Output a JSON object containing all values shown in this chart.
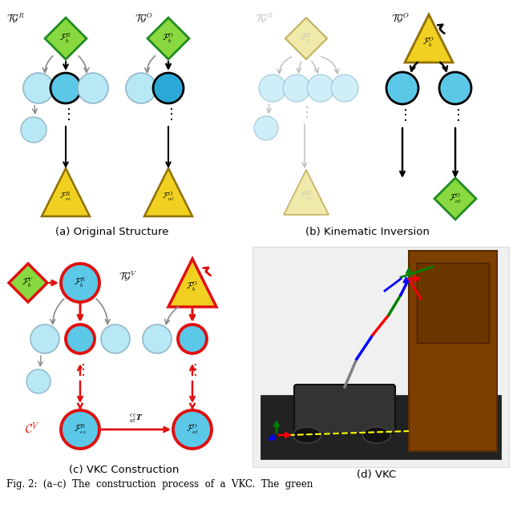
{
  "fig_width": 6.4,
  "fig_height": 6.44,
  "bg_color": "#ffffff",
  "caption": "Fig. 2:  (a–c)  The  construction  process  of  a  VKC.  The  green",
  "subcaption_a": "(a) Original Structure",
  "subcaption_b": "(b) Kinematic Inversion",
  "subcaption_c": "(c) VKC Construction",
  "subcaption_d": "(d) VKC",
  "light_blue_fill": "#b8e8f5",
  "med_blue_fill": "#5bc8e8",
  "dark_blue_fill": "#2aa8d8",
  "light_blue_stroke": "#90b8c8",
  "green_diamond_fill": "#88d840",
  "green_diamond_stroke": "#228B22",
  "yellow_tri_fill": "#f0d020",
  "yellow_tri_stroke": "#907000",
  "light_yellow_fill": "#f0eaaa",
  "light_yellow_stroke": "#c0b060",
  "faded_blue_fill": "#d0eef8",
  "faded_blue_stroke": "#a0c8d8",
  "red_color": "#e01010",
  "gray_arrow": "#888888",
  "faded_gray": "#bbbbbb",
  "black": "#000000"
}
